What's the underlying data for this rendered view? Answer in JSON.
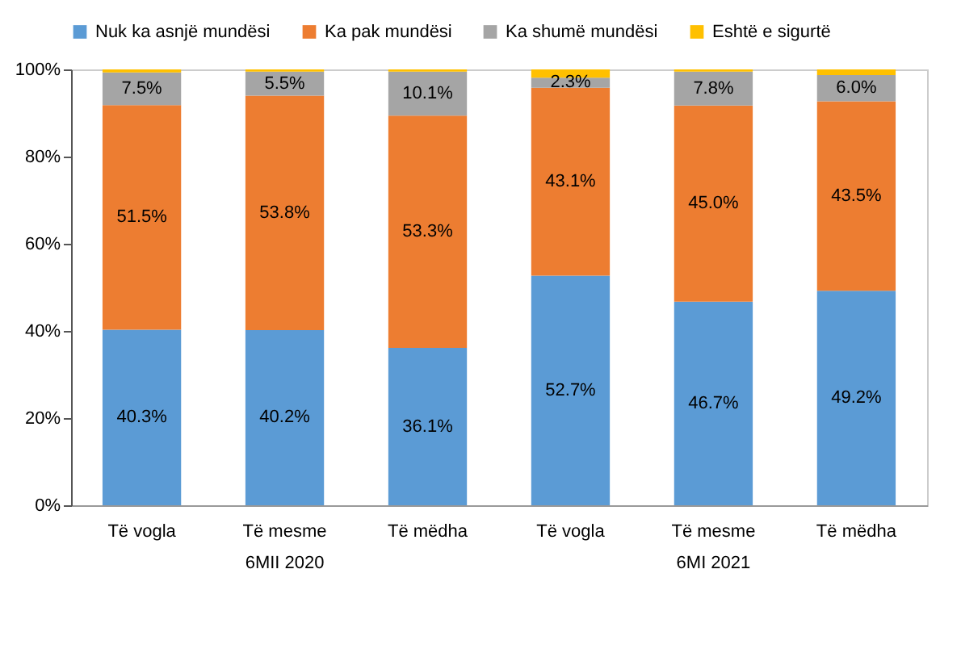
{
  "chart_data": {
    "type": "bar",
    "stacked": true,
    "categories": [
      "Të vogla",
      "Të mesme",
      "Të mëdha",
      "Të vogla",
      "Të mesme",
      "Të mëdha"
    ],
    "series": [
      {
        "name": "Nuk ka asnjë mundësi",
        "color": "#5b9bd5",
        "values": [
          40.3,
          40.2,
          36.1,
          52.7,
          46.7,
          49.2
        ],
        "value_labels": [
          "40.3%",
          "40.2%",
          "36.1%",
          "52.7%",
          "46.7%",
          "49.2%"
        ]
      },
      {
        "name": "Ka pak mundësi",
        "color": "#ed7d31",
        "values": [
          51.5,
          53.8,
          53.3,
          43.1,
          45.0,
          43.5
        ],
        "value_labels": [
          "51.5%",
          "53.8%",
          "53.3%",
          "43.1%",
          "45.0%",
          "43.5%"
        ]
      },
      {
        "name": "Ka shumë mundësi",
        "color": "#a5a5a5",
        "values": [
          7.5,
          5.5,
          10.1,
          2.3,
          7.8,
          6.0
        ],
        "value_labels": [
          "7.5%",
          "5.5%",
          "10.1%",
          "2.3%",
          "7.8%",
          "6.0%"
        ]
      },
      {
        "name": "Eshtë e sigurtë",
        "color": "#ffc000",
        "values": [
          0.7,
          0.5,
          0.5,
          1.9,
          0.5,
          1.3
        ],
        "value_labels": [
          null,
          null,
          null,
          null,
          null,
          null
        ]
      }
    ],
    "ylim": [
      0,
      100
    ],
    "yticks": [
      {
        "value": 0,
        "label": "0%"
      },
      {
        "value": 20,
        "label": "20%"
      },
      {
        "value": 40,
        "label": "40%"
      },
      {
        "value": 60,
        "label": "60%"
      },
      {
        "value": 80,
        "label": "80%"
      },
      {
        "value": 100,
        "label": "100%"
      }
    ],
    "grid": false,
    "legend": "top",
    "annotations": [
      "6MII 2020",
      "6MI 2021"
    ]
  }
}
